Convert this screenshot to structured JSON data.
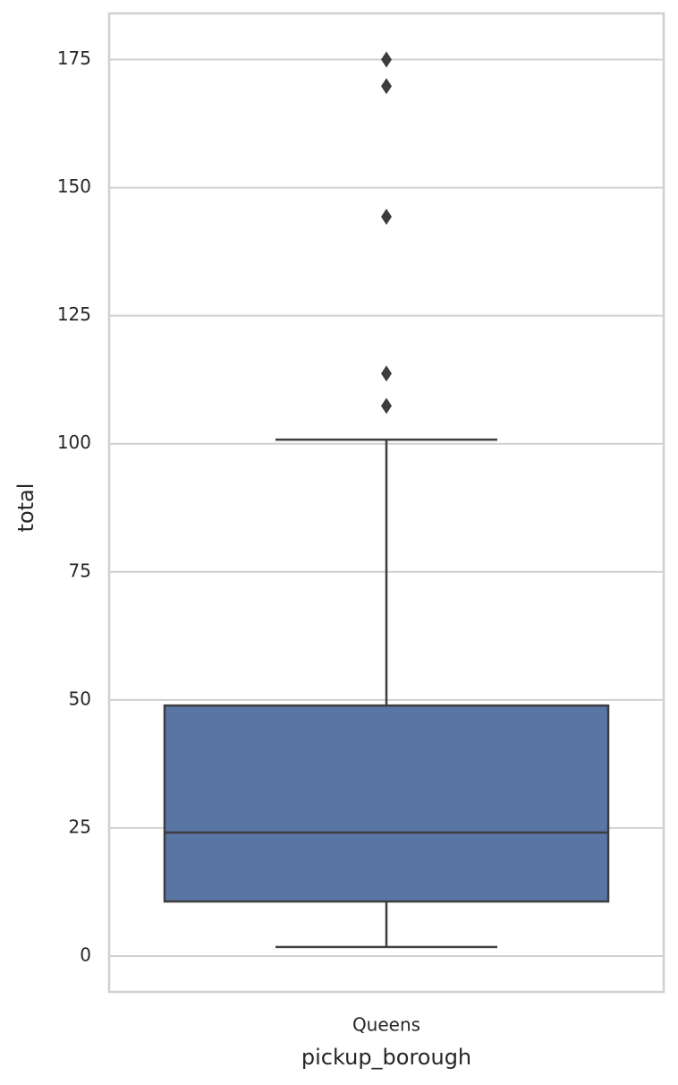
{
  "chart_data": {
    "type": "box",
    "categories": [
      "Queens"
    ],
    "boxes": [
      {
        "min": 1.75,
        "q1": 10.65,
        "median": 24.1,
        "q3": 48.9,
        "max": 100.8,
        "outliers": [
          175,
          169.8,
          144.3,
          113.7,
          107.4
        ]
      }
    ],
    "color": "#5875a4",
    "xlabel": "pickup_borough",
    "ylabel": "total",
    "ylim": [
      -7,
      184
    ],
    "yticks": [
      0,
      25,
      50,
      75,
      100,
      125,
      150,
      175
    ],
    "grid": true
  }
}
